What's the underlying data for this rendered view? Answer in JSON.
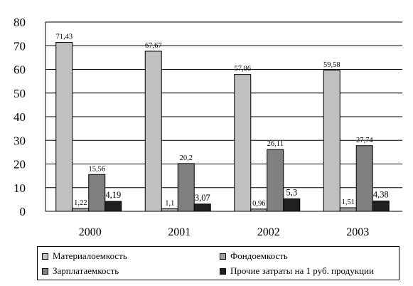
{
  "chart_data": {
    "type": "bar",
    "categories": [
      "2000",
      "2001",
      "2002",
      "2003"
    ],
    "ylim": [
      0,
      80
    ],
    "yticks": [
      "0",
      "10",
      "20",
      "30",
      "40",
      "50",
      "60",
      "70",
      "80"
    ],
    "grid": true,
    "legend_position": "bottom",
    "series": [
      {
        "name": "Материалоемкость",
        "color": "#c0c0c0",
        "values": [
          71.43,
          67.67,
          57.86,
          59.58
        ],
        "labels": [
          "71,43",
          "67,67",
          "57,86",
          "59,58"
        ]
      },
      {
        "name": "Фондоемкость",
        "color": "#a0a0a0",
        "values": [
          1.22,
          1.1,
          0.96,
          1.51
        ],
        "labels": [
          "1,22",
          "1,1",
          "0,96",
          "1,51"
        ]
      },
      {
        "name": "Зарплатаемкость",
        "color": "#808080",
        "values": [
          15.56,
          20.2,
          26.11,
          27.74
        ],
        "labels": [
          "15,56",
          "20,2",
          "26,11",
          "27,74"
        ]
      },
      {
        "name": "Прочие затраты на 1 руб. продукции",
        "color": "#202020",
        "values": [
          4.19,
          3.07,
          5.3,
          4.38
        ],
        "labels": [
          "4,19",
          "3,07",
          "5,3",
          "4,38"
        ]
      }
    ]
  }
}
